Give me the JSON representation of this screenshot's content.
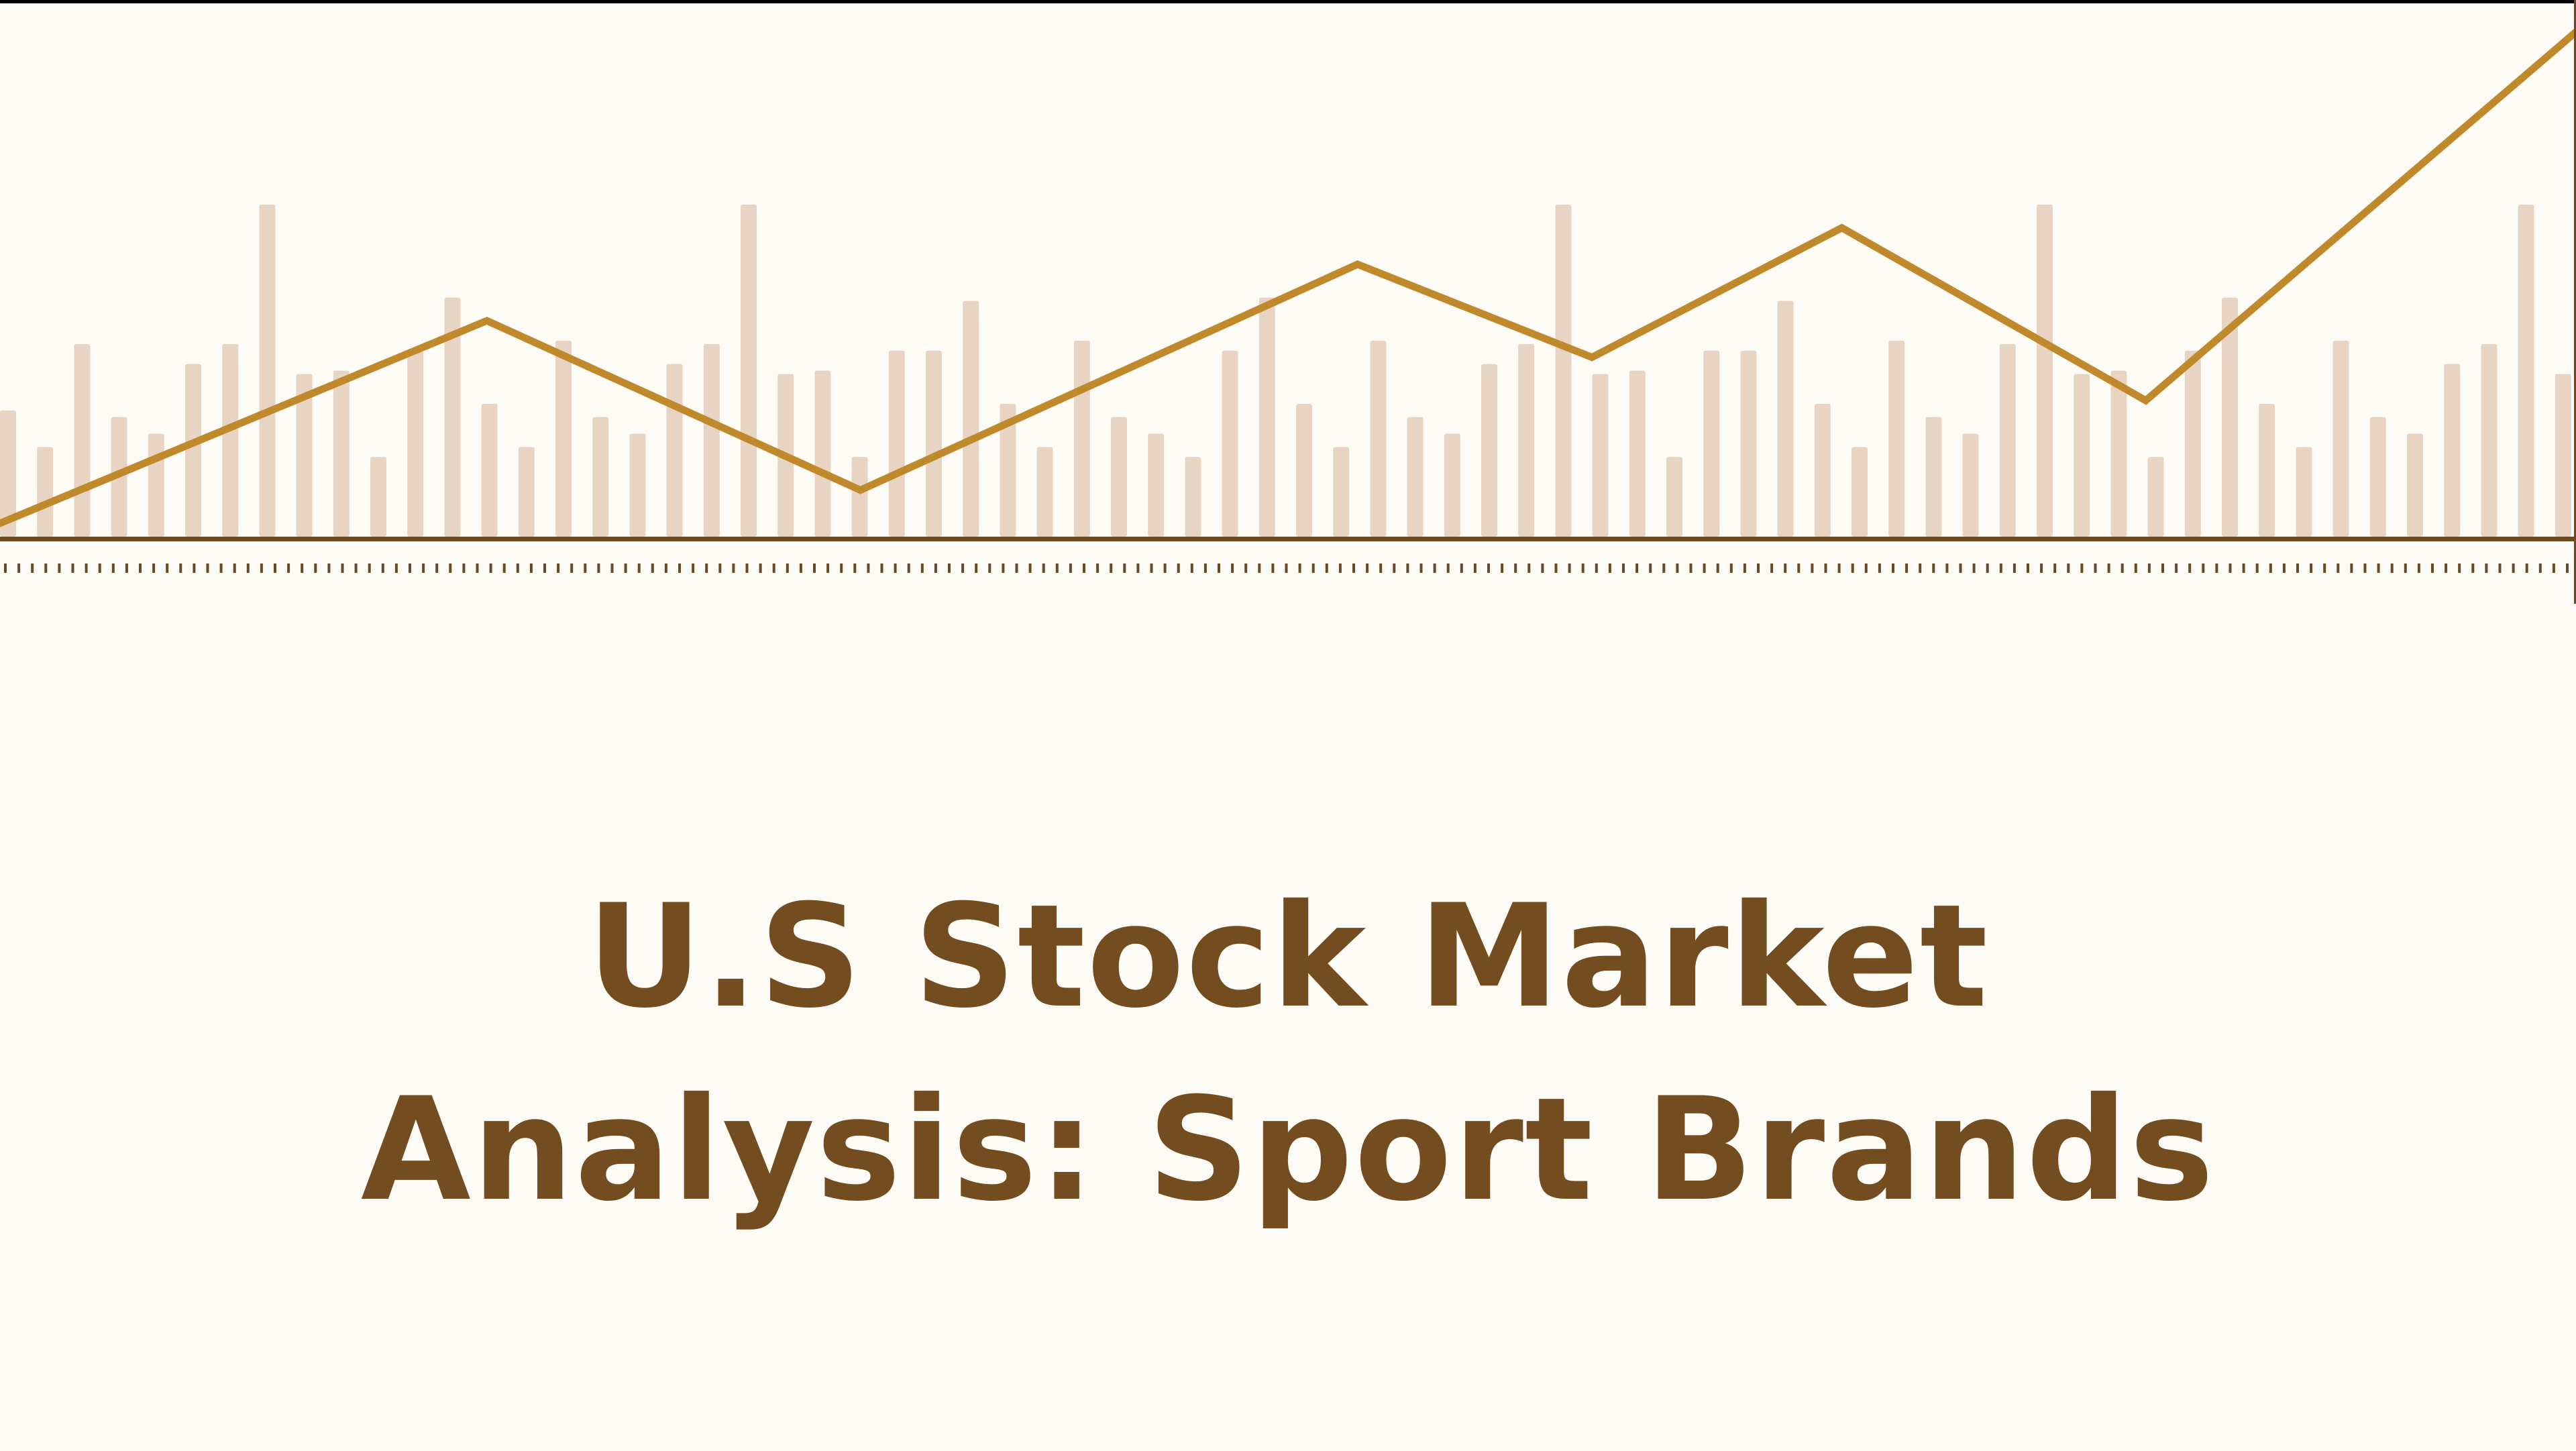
{
  "slide": {
    "title_line_1": "U.S Stock Market",
    "title_line_2": "Analysis: Sport Brands"
  },
  "colors": {
    "background": "#fdfbf6",
    "title": "#734c20",
    "bars": "#e8d4c2",
    "trend_line": "#c0892c",
    "baseline": "#6b4a22",
    "ticks": "#6b4a22"
  },
  "decoration": {
    "bar_levels": [
      0.38,
      0.27,
      0.58,
      0.36,
      0.31,
      0.52,
      0.58,
      1.0,
      0.49,
      0.5,
      0.24,
      0.56,
      0.72,
      0.4,
      0.27,
      0.59,
      0.36,
      0.31,
      0.52,
      0.58,
      1.0,
      0.49,
      0.5,
      0.24,
      0.56,
      0.56,
      0.71,
      0.4,
      0.27,
      0.59,
      0.36,
      0.31,
      0.24,
      0.56,
      0.72,
      0.4,
      0.27,
      0.59,
      0.36,
      0.31,
      0.52,
      0.58,
      1.0,
      0.49,
      0.5,
      0.24,
      0.56,
      0.56,
      0.71,
      0.4,
      0.27,
      0.59,
      0.36,
      0.31,
      0.58,
      1.0,
      0.49,
      0.5,
      0.24,
      0.56,
      0.72,
      0.4,
      0.27,
      0.59,
      0.36,
      0.31,
      0.52,
      0.58,
      1.0,
      0.49
    ],
    "trend_points": [
      [
        0.0,
        0.02
      ],
      [
        0.189,
        0.63
      ],
      [
        0.334,
        0.12
      ],
      [
        0.527,
        0.8
      ],
      [
        0.618,
        0.52
      ],
      [
        0.715,
        0.91
      ],
      [
        0.833,
        0.39
      ],
      [
        1.0,
        1.5
      ]
    ]
  }
}
